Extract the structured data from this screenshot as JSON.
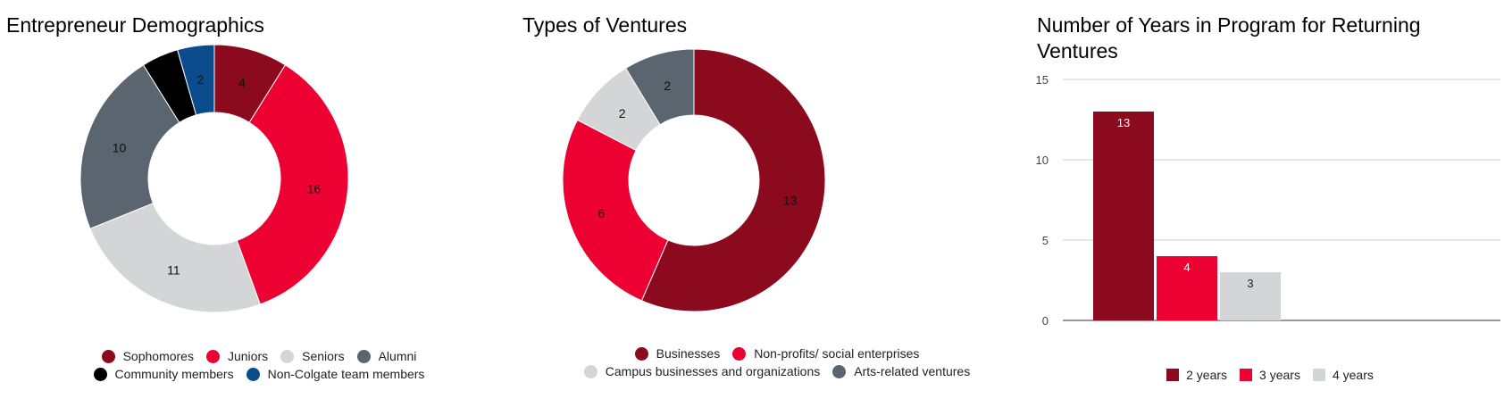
{
  "chart_data": [
    {
      "id": "demographics",
      "type": "pie",
      "donut": true,
      "title": "Entrepreneur Demographics",
      "categories": [
        "Sophomores",
        "Juniors",
        "Seniors",
        "Alumni",
        "Community members",
        "Non-Colgate team members"
      ],
      "values": [
        4,
        16,
        11,
        10,
        2,
        2
      ],
      "labels": [
        "4",
        "16",
        "11",
        "10",
        "",
        "2"
      ],
      "colors": [
        "#8B0A1E",
        "#EC0132",
        "#D4D5D7",
        "#5A6570",
        "#000000",
        "#0B4D8C"
      ],
      "legend_rows": [
        [
          {
            "label": "Sophomores",
            "color": "#8B0A1E"
          },
          {
            "label": "Juniors",
            "color": "#EC0132"
          },
          {
            "label": "Seniors",
            "color": "#D4D5D7"
          },
          {
            "label": "Alumni",
            "color": "#5A6570"
          }
        ],
        [
          {
            "label": "Community members",
            "color": "#000000"
          },
          {
            "label": "Non-Colgate team members",
            "color": "#0B4D8C"
          }
        ]
      ],
      "legend_position": "bottom"
    },
    {
      "id": "ventures",
      "type": "pie",
      "donut": true,
      "title": "Types of Ventures",
      "categories": [
        "Businesses",
        "Non-profits/ social enterprises",
        "Campus businesses and organizations",
        "Arts-related ventures"
      ],
      "values": [
        13,
        6,
        2,
        2
      ],
      "labels": [
        "13",
        "6",
        "2",
        "2"
      ],
      "colors": [
        "#8B0A1E",
        "#EC0132",
        "#D4D5D7",
        "#5A6570"
      ],
      "legend_rows": [
        [
          {
            "label": "Businesses",
            "color": "#8B0A1E"
          },
          {
            "label": "Non-profits/ social enterprises",
            "color": "#EC0132"
          }
        ],
        [
          {
            "label": "Campus businesses and organizations",
            "color": "#D4D5D7"
          },
          {
            "label": "Arts-related ventures",
            "color": "#5A6570"
          }
        ]
      ],
      "legend_position": "bottom"
    },
    {
      "id": "years",
      "type": "bar",
      "title": "Number of Years in Program for Returning Ventures",
      "series": [
        {
          "name": "2 years",
          "values": [
            13
          ],
          "color": "#8B0A1E",
          "label_color": "#ffffff"
        },
        {
          "name": "3 years",
          "values": [
            4
          ],
          "color": "#EC0132",
          "label_color": "#ffffff"
        },
        {
          "name": "4 years",
          "values": [
            3
          ],
          "color": "#D4D5D7",
          "label_color": "#222222"
        }
      ],
      "ylim": [
        0,
        15
      ],
      "yticks": [
        0,
        5,
        10,
        15
      ],
      "grid": true,
      "legend_position": "bottom"
    }
  ]
}
